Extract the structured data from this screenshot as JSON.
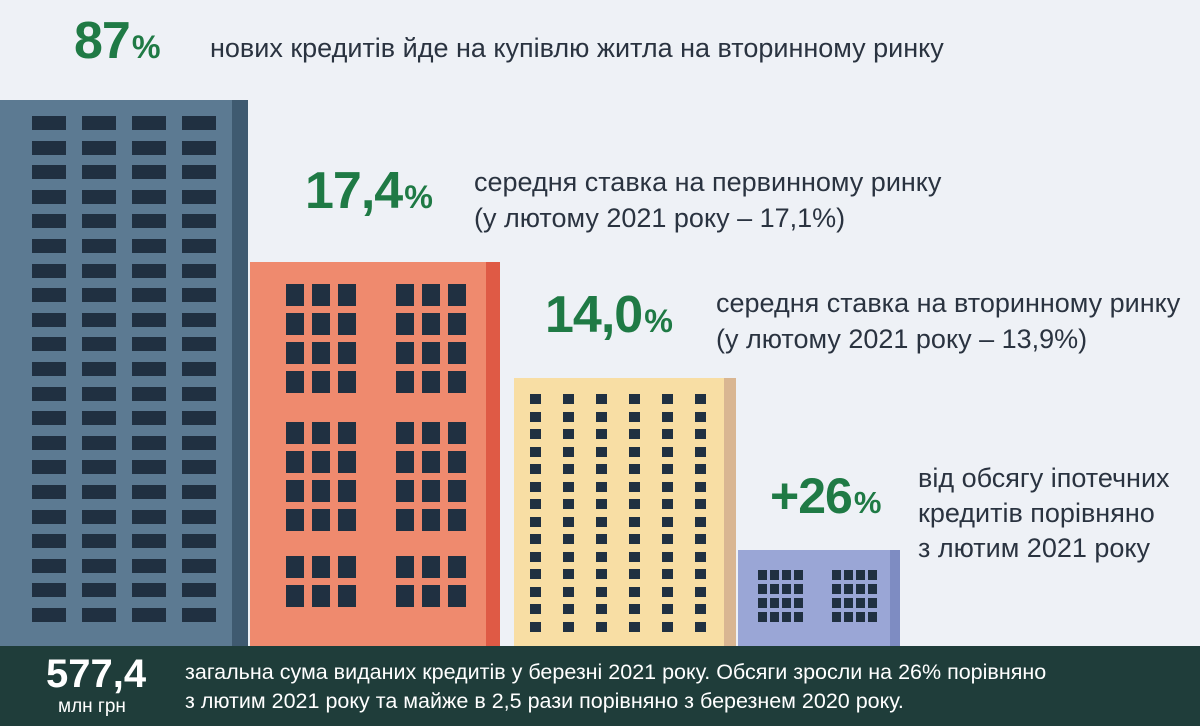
{
  "stats": [
    {
      "value": "87",
      "unit": "%",
      "lines": [
        "нових кредитів йде на купівлю житла на вторинному ринку"
      ]
    },
    {
      "value": "17,4",
      "unit": "%",
      "lines": [
        "середня ставка на первинному ринку",
        "(у лютому 2021 року – 17,1%)"
      ]
    },
    {
      "value": "14,0",
      "unit": "%",
      "lines": [
        "середня ставка на вторинному ринку",
        "(у лютому 2021 року – 13,9%)"
      ]
    },
    {
      "value": "+26",
      "unit": "%",
      "lines": [
        "від обсягу іпотечних",
        "кредитів порівняно",
        "з лютим 2021 року"
      ]
    }
  ],
  "footer": {
    "total": "577,4",
    "unit": "млн грн",
    "lines": [
      "загальна сума виданих кредитів у березні 2021 року. Обсяги зросли на 26% порівняно",
      "з лютим 2021 року та майже в 2,5 рази порівняно з березнем 2020 року."
    ]
  },
  "colors": {
    "accent_green": "#1f7a45",
    "building_blue": "#5c7a92",
    "building_coral": "#ef8a6e",
    "building_sand": "#f8dea4",
    "building_lavender": "#9aa6d6",
    "footer_bg": "#1f3d3a"
  }
}
